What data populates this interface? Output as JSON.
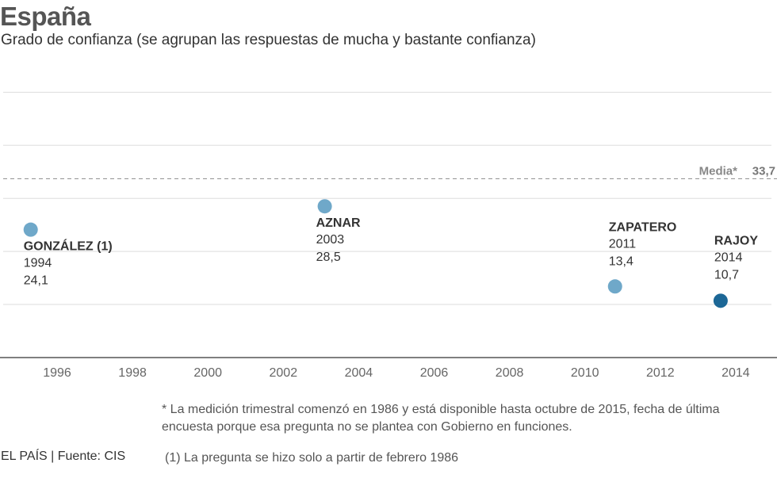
{
  "title": "España",
  "subtitle": "Grado de confianza (se agrupan las respuestas de mucha y bastante confianza)",
  "note": "* La medición trimestral comenzó en 1986 y está disponible hasta octubre de 2015, fecha de última encuesta porque esa pregunta no se plantea con Gobierno en funciones.",
  "source": "EL PAÍS | Fuente: CIS",
  "footnote": "(1) La pregunta se hizo solo a partir de febrero 1986",
  "chart_data": {
    "type": "scatter",
    "x_ticks": [
      "1996",
      "1998",
      "2000",
      "2002",
      "2004",
      "2006",
      "2008",
      "2010",
      "2012",
      "2014"
    ],
    "reference_line": {
      "label": "Media*",
      "value": 33.7,
      "value_label": "33,7"
    },
    "points": [
      {
        "name": "GONZÁLEZ (1)",
        "year": "1994",
        "value": 24.1,
        "value_label": "24,1",
        "x": 1995.3,
        "color": "#6fa8c9"
      },
      {
        "name": "AZNAR",
        "year": "2003",
        "value": 28.5,
        "value_label": "28,5",
        "x": 2003.1,
        "color": "#6fa8c9"
      },
      {
        "name": "ZAPATERO",
        "year": "2011",
        "value": 13.4,
        "value_label": "13,4",
        "x": 2010.8,
        "color": "#6fa8c9"
      },
      {
        "name": "RAJOY",
        "year": "2014",
        "value": 10.7,
        "value_label": "10,7",
        "x": 2013.6,
        "color": "#1c6796"
      }
    ],
    "colors": {
      "grid": "#dddddd",
      "axis": "#555555",
      "reference": "#999999"
    }
  }
}
